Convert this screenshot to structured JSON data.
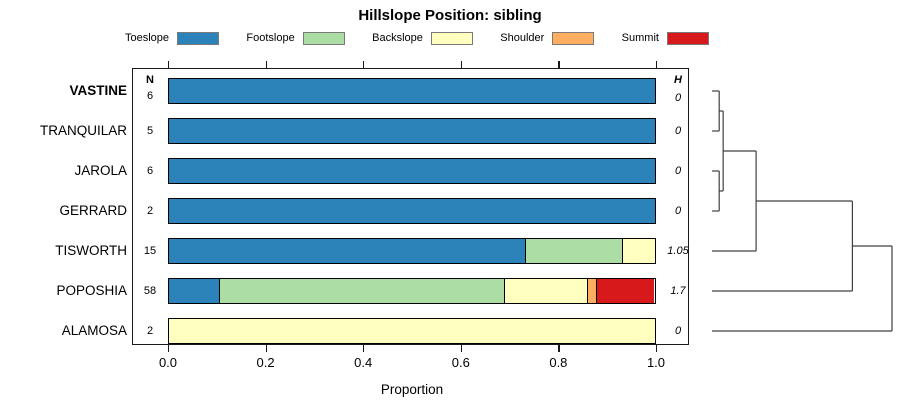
{
  "title": "Hillslope Position: sibling",
  "legend": {
    "items": [
      {
        "label": "Toeslope",
        "color": "#2B83BA"
      },
      {
        "label": "Footslope",
        "color": "#ABDDA4"
      },
      {
        "label": "Backslope",
        "color": "#FFFFBF"
      },
      {
        "label": "Shoulder",
        "color": "#FDAE61"
      },
      {
        "label": "Summit",
        "color": "#D7191C"
      }
    ]
  },
  "columns": {
    "n_header": "N",
    "h_header": "H"
  },
  "chart_data": {
    "type": "bar",
    "stacked": true,
    "orientation": "horizontal",
    "title": "Hillslope Position: sibling",
    "xlabel": "Proportion",
    "xlim": [
      0,
      1
    ],
    "x_ticks": [
      "0.0",
      "0.2",
      "0.4",
      "0.6",
      "0.8",
      "1.0"
    ],
    "grid": false,
    "legend_position": "top",
    "series_labels": [
      "Toeslope",
      "Footslope",
      "Backslope",
      "Shoulder",
      "Summit"
    ],
    "series_colors": [
      "#2B83BA",
      "#ABDDA4",
      "#FFFFBF",
      "#FDAE61",
      "#D7191C"
    ],
    "categories": [
      "VASTINE",
      "TRANQUILAR",
      "JAROLA",
      "GERRARD",
      "TISWORTH",
      "POPOSHIA",
      "ALAMOSA"
    ],
    "rows": [
      {
        "label": "VASTINE",
        "bold": true,
        "n": "6",
        "h": "0",
        "values": [
          1,
          0,
          0,
          0,
          0
        ]
      },
      {
        "label": "TRANQUILAR",
        "bold": false,
        "n": "5",
        "h": "0",
        "values": [
          1,
          0,
          0,
          0,
          0
        ]
      },
      {
        "label": "JAROLA",
        "bold": false,
        "n": "6",
        "h": "0",
        "values": [
          1,
          0,
          0,
          0,
          0
        ]
      },
      {
        "label": "GERRARD",
        "bold": false,
        "n": "2",
        "h": "0",
        "values": [
          1,
          0,
          0,
          0,
          0
        ]
      },
      {
        "label": "TISWORTH",
        "bold": false,
        "n": "15",
        "h": "1.05",
        "values": [
          0.733,
          0.2,
          0.067,
          0,
          0
        ]
      },
      {
        "label": "POPOSHIA",
        "bold": false,
        "n": "58",
        "h": "1.7",
        "values": [
          0.103,
          0.586,
          0.172,
          0.017,
          0.121
        ]
      },
      {
        "label": "ALAMOSA",
        "bold": false,
        "n": "2",
        "h": "0",
        "values": [
          0,
          0,
          1,
          0,
          0
        ]
      }
    ],
    "dendrogram": {
      "merges": [
        {
          "children": [
            0,
            1
          ],
          "height": 0.04
        },
        {
          "children": [
            2,
            3
          ],
          "height": 0.04
        },
        {
          "children": [
            7,
            8
          ],
          "height": 0.062
        },
        {
          "children": [
            9,
            4
          ],
          "height": 0.245
        },
        {
          "children": [
            10,
            5
          ],
          "height": 0.78
        },
        {
          "children": [
            11,
            6
          ],
          "height": 1.0
        }
      ]
    }
  }
}
